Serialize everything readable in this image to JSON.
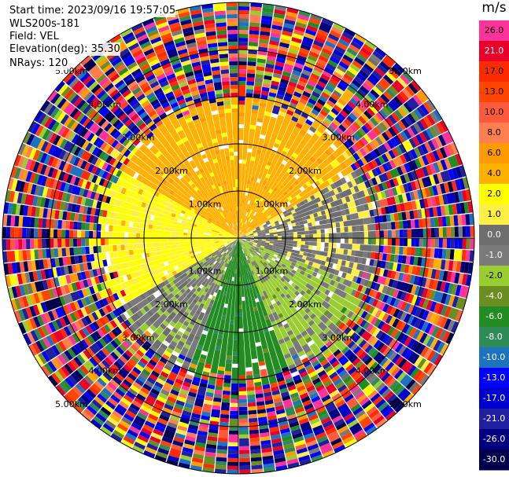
{
  "header": {
    "start_time_label": "Start time: 2023/09/16 19:57:05",
    "instrument": "WLS200s-181",
    "field": "Field: VEL",
    "elevation": "Elevation(deg): 35.30",
    "nrays": "NRays: 120"
  },
  "colorbar": {
    "unit": "m/s",
    "ticks": [
      "26.0",
      "21.0",
      "17.0",
      "13.0",
      "10.0",
      "8.0",
      "6.0",
      "4.0",
      "2.0",
      "1.0",
      "0.0",
      "-1.0",
      "-2.0",
      "-4.0",
      "-6.0",
      "-8.0",
      "-10.0",
      "-13.0",
      "-17.0",
      "-21.0",
      "-26.0",
      "-30.0"
    ],
    "colors": [
      "#ff3399",
      "#e8002a",
      "#ff2a00",
      "#ff4500",
      "#ff5a3c",
      "#ff7f50",
      "#ff9a00",
      "#ffb000",
      "#ffff00",
      "#ffee44",
      "#6e6e6e",
      "#7a7a7a",
      "#9acd32",
      "#6b8e23",
      "#228b22",
      "#2e8b57",
      "#1e73be",
      "#0000ff",
      "#0000cd",
      "#1f1f9f",
      "#000080",
      "#00004d"
    ]
  },
  "chart_data": {
    "type": "heatmap",
    "projection": "polar-ppi",
    "field": "VEL",
    "nrays": 120,
    "range_rings_km": [
      1.0,
      2.0,
      3.0,
      4.0,
      5.0
    ],
    "ring_labels": [
      "1.00km",
      "2.00km",
      "3.00km",
      "4.00km",
      "5.00km"
    ],
    "max_range_km": 5.0,
    "velocity_range": [
      -30.0,
      26.0
    ],
    "sectors": [
      {
        "from_deg": 300,
        "to_deg": 60,
        "dominant_velocity": 4.0
      },
      {
        "from_deg": 60,
        "to_deg": 110,
        "dominant_velocity": 0.0
      },
      {
        "from_deg": 110,
        "to_deg": 160,
        "dominant_velocity": -2.0
      },
      {
        "from_deg": 160,
        "to_deg": 200,
        "dominant_velocity": -6.0
      },
      {
        "from_deg": 200,
        "to_deg": 240,
        "dominant_velocity": -1.0
      },
      {
        "from_deg": 240,
        "to_deg": 300,
        "dominant_velocity": 2.0
      }
    ],
    "noise_beyond_km": 3.0
  }
}
